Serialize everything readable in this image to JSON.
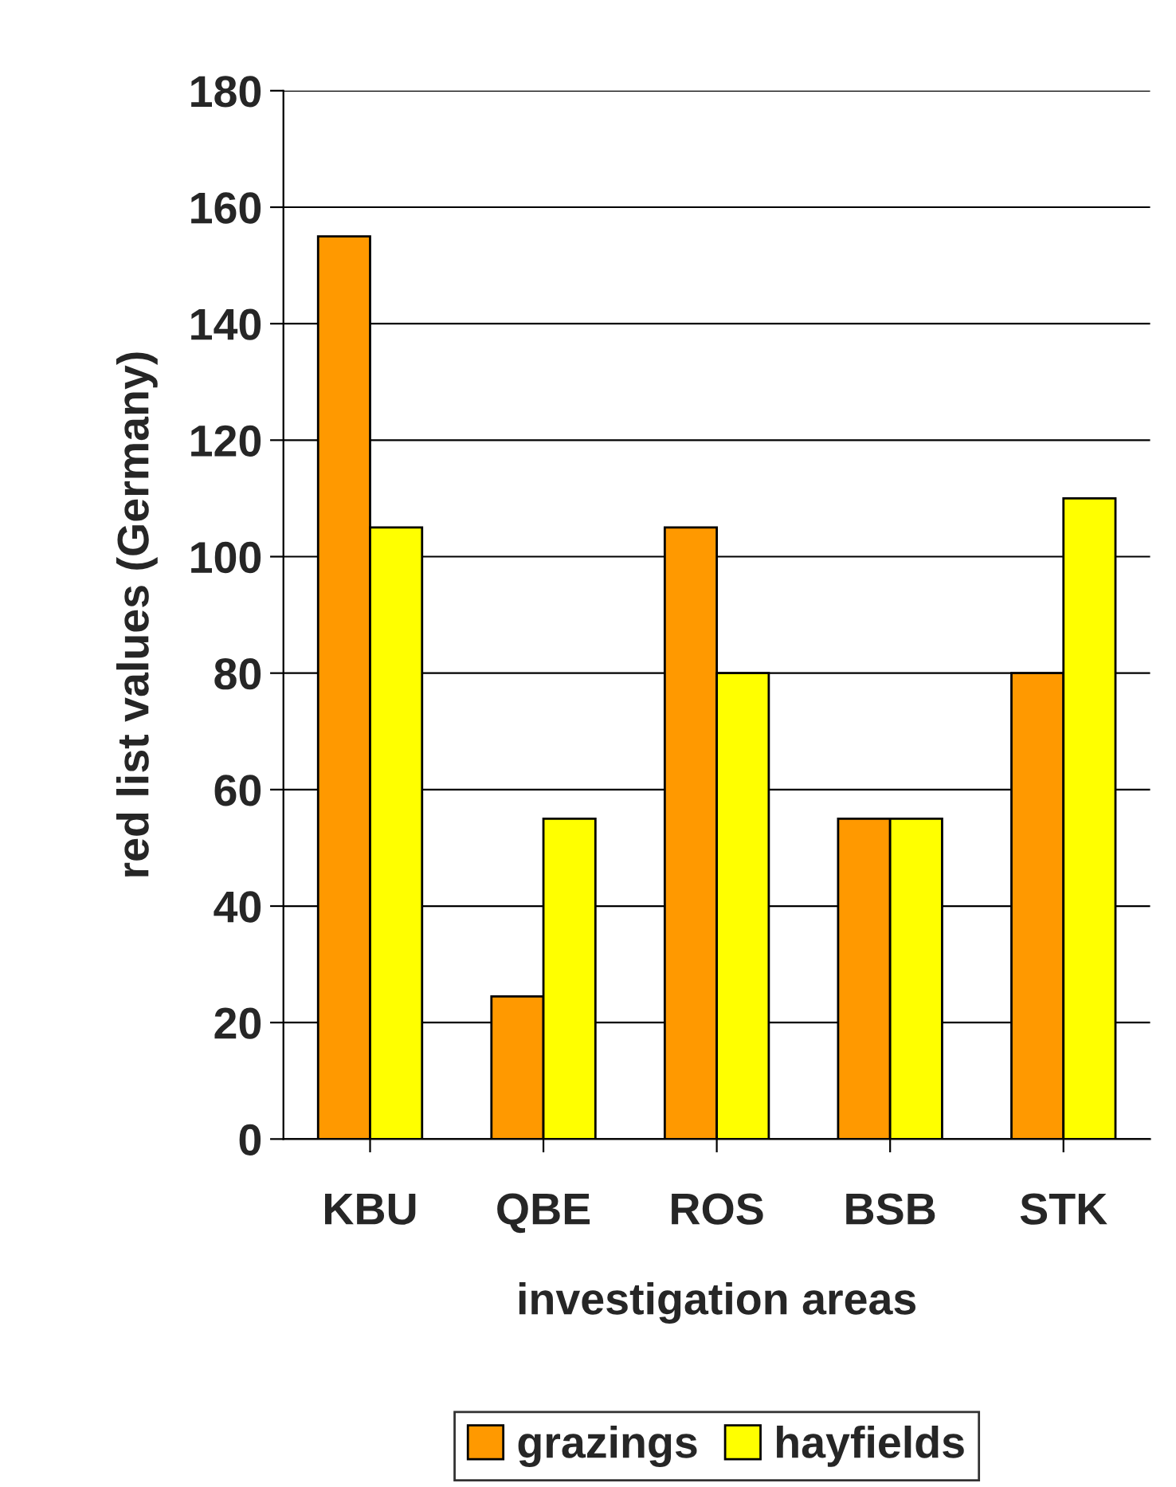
{
  "chart_data": {
    "type": "bar",
    "xlabel": "investigation areas",
    "ylabel": "red list values (Germany)",
    "categories": [
      "KBU",
      "QBE",
      "ROS",
      "BSB",
      "STK"
    ],
    "series": [
      {
        "name": "grazings",
        "color": "#ff9900",
        "values": [
          155,
          24.5,
          105,
          55,
          80
        ]
      },
      {
        "name": "hayfields",
        "color": "#ffff00",
        "values": [
          105,
          55,
          80,
          55,
          110
        ]
      }
    ],
    "ylim": [
      0,
      180
    ],
    "yticks": [
      0,
      20,
      40,
      60,
      80,
      100,
      120,
      140,
      160,
      180
    ],
    "grid": "y",
    "legend": "bottom"
  }
}
